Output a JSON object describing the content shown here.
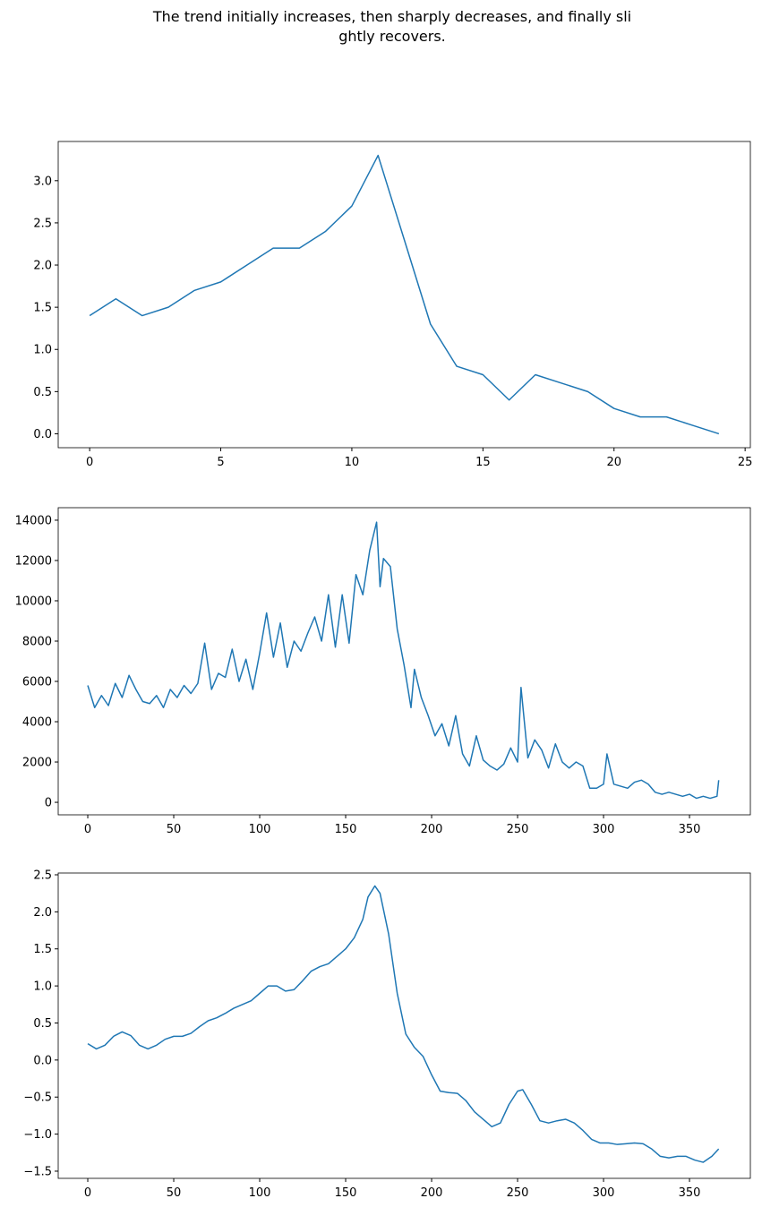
{
  "title": "The trend initially increases, then sharply decreases, and finally sli\nghtly recovers.",
  "chart_data": [
    {
      "type": "line",
      "color": "#1f77b4",
      "x": [
        0,
        1,
        2,
        3,
        4,
        5,
        6,
        7,
        8,
        9,
        10,
        11,
        12,
        13,
        14,
        15,
        16,
        17,
        18,
        19,
        20,
        21,
        22,
        23,
        24
      ],
      "values": [
        1.4,
        1.6,
        1.4,
        1.5,
        1.7,
        1.8,
        2.0,
        2.2,
        2.2,
        2.4,
        2.7,
        3.3,
        2.3,
        1.3,
        0.8,
        0.7,
        0.4,
        0.7,
        0.6,
        0.5,
        0.3,
        0.2,
        0.2,
        0.1,
        0.0
      ],
      "xlim": [
        -1.2,
        25.2
      ],
      "ylim": [
        -0.165,
        3.465
      ],
      "xticks": [
        0,
        5,
        10,
        15,
        20,
        25
      ],
      "yticks": [
        {
          "value": 0,
          "label": "0.0"
        },
        {
          "value": 0.5,
          "label": "0.5"
        },
        {
          "value": 1,
          "label": "1.0"
        },
        {
          "value": 1.5,
          "label": "1.5"
        },
        {
          "value": 2,
          "label": "2.0"
        },
        {
          "value": 2.5,
          "label": "2.5"
        },
        {
          "value": 3,
          "label": "3.0"
        }
      ]
    },
    {
      "type": "line",
      "color": "#1f77b4",
      "x": [
        0,
        4,
        8,
        12,
        16,
        20,
        24,
        28,
        32,
        36,
        40,
        44,
        48,
        52,
        56,
        60,
        64,
        68,
        72,
        76,
        80,
        84,
        88,
        92,
        96,
        100,
        104,
        108,
        112,
        116,
        120,
        124,
        128,
        132,
        136,
        140,
        144,
        148,
        152,
        156,
        160,
        164,
        168,
        170,
        172,
        176,
        180,
        184,
        188,
        190,
        194,
        198,
        202,
        206,
        210,
        214,
        218,
        222,
        226,
        230,
        234,
        238,
        242,
        246,
        250,
        252,
        256,
        260,
        264,
        268,
        272,
        276,
        280,
        284,
        288,
        292,
        296,
        300,
        302,
        306,
        310,
        314,
        318,
        322,
        326,
        330,
        334,
        338,
        342,
        346,
        350,
        354,
        358,
        362,
        366,
        367
      ],
      "values": [
        5800,
        4700,
        5300,
        4800,
        5900,
        5200,
        6300,
        5600,
        5000,
        4900,
        5300,
        4700,
        5600,
        5200,
        5800,
        5400,
        5900,
        7900,
        5600,
        6400,
        6200,
        7600,
        6000,
        7100,
        5600,
        7400,
        9400,
        7200,
        8900,
        6700,
        8000,
        7500,
        8400,
        9200,
        8000,
        10300,
        7700,
        10300,
        7900,
        11300,
        10300,
        12500,
        13900,
        10700,
        12100,
        11700,
        8600,
        6800,
        4700,
        6600,
        5200,
        4300,
        3300,
        3900,
        2800,
        4300,
        2400,
        1800,
        3300,
        2100,
        1800,
        1600,
        1900,
        2700,
        2000,
        5700,
        2200,
        3100,
        2600,
        1700,
        2900,
        2000,
        1700,
        2000,
        1800,
        700,
        700,
        900,
        2400,
        900,
        800,
        700,
        1000,
        1100,
        900,
        500,
        400,
        500,
        400,
        300,
        400,
        200,
        300,
        200,
        300,
        1100
      ],
      "xlim": [
        -17.2,
        385.4
      ],
      "ylim": [
        -620,
        14620
      ],
      "xticks": [
        0,
        50,
        100,
        150,
        200,
        250,
        300,
        350
      ],
      "yticks": [
        0,
        2000,
        4000,
        6000,
        8000,
        10000,
        12000,
        14000
      ]
    },
    {
      "type": "line",
      "color": "#1f77b4",
      "x": [
        0,
        5,
        10,
        15,
        20,
        25,
        30,
        35,
        40,
        45,
        50,
        55,
        60,
        65,
        70,
        75,
        80,
        85,
        90,
        95,
        100,
        105,
        110,
        115,
        120,
        125,
        130,
        135,
        140,
        145,
        150,
        155,
        160,
        163,
        167,
        170,
        175,
        180,
        185,
        190,
        195,
        200,
        205,
        210,
        215,
        220,
        225,
        230,
        235,
        240,
        245,
        250,
        253,
        258,
        263,
        268,
        273,
        278,
        283,
        288,
        293,
        298,
        303,
        308,
        313,
        318,
        323,
        328,
        333,
        338,
        343,
        348,
        353,
        358,
        363,
        367
      ],
      "values": [
        0.22,
        0.15,
        0.2,
        0.32,
        0.38,
        0.33,
        0.2,
        0.15,
        0.2,
        0.28,
        0.32,
        0.32,
        0.36,
        0.45,
        0.53,
        0.57,
        0.63,
        0.7,
        0.75,
        0.8,
        0.9,
        1.0,
        1.0,
        0.93,
        0.95,
        1.07,
        1.2,
        1.26,
        1.3,
        1.4,
        1.5,
        1.65,
        1.9,
        2.2,
        2.35,
        2.25,
        1.7,
        0.9,
        0.35,
        0.17,
        0.05,
        -0.2,
        -0.42,
        -0.44,
        -0.45,
        -0.55,
        -0.7,
        -0.8,
        -0.9,
        -0.85,
        -0.6,
        -0.42,
        -0.4,
        -0.6,
        -0.82,
        -0.85,
        -0.82,
        -0.8,
        -0.85,
        -0.95,
        -1.07,
        -1.12,
        -1.12,
        -1.14,
        -1.13,
        -1.12,
        -1.13,
        -1.2,
        -1.3,
        -1.32,
        -1.3,
        -1.3,
        -1.35,
        -1.38,
        -1.3,
        -1.2
      ],
      "xlim": [
        -17.2,
        385.4
      ],
      "ylim": [
        -1.597,
        2.524
      ],
      "xticks": [
        0,
        50,
        100,
        150,
        200,
        250,
        300,
        350
      ],
      "yticks": [
        {
          "value": -1.5,
          "label": "−1.5"
        },
        {
          "value": -1,
          "label": "−1.0"
        },
        {
          "value": -0.5,
          "label": "−0.5"
        },
        {
          "value": 0,
          "label": "0.0"
        },
        {
          "value": 0.5,
          "label": "0.5"
        },
        {
          "value": 1,
          "label": "1.0"
        },
        {
          "value": 1.5,
          "label": "1.5"
        },
        {
          "value": 2,
          "label": "2.0"
        },
        {
          "value": 2.5,
          "label": "2.5"
        }
      ]
    }
  ]
}
